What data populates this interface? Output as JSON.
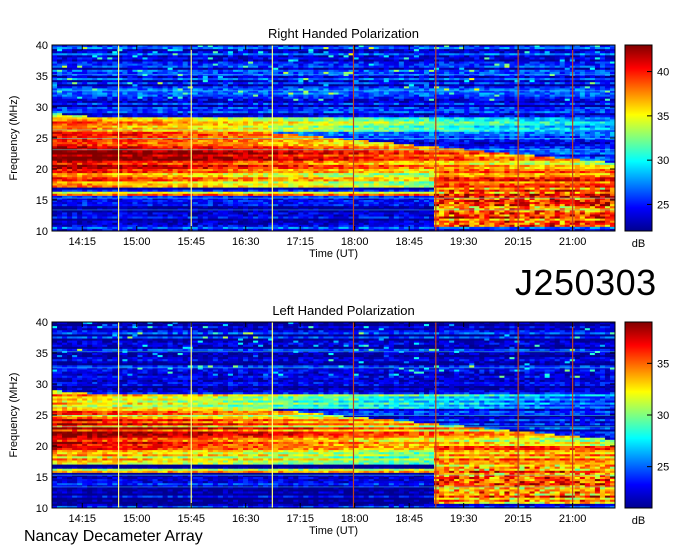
{
  "observation_code": "J250303",
  "observatory": "Nancay Decameter Array",
  "colormap": [
    "#00008f",
    "#0000ff",
    "#0080ff",
    "#00ffff",
    "#80ff80",
    "#ffff00",
    "#ff8000",
    "#ff0000",
    "#800000"
  ],
  "chart_data": [
    {
      "type": "heatmap",
      "title": "Right Handed Polarization",
      "xlabel": "Time (UT)",
      "ylabel": "Frequency (MHz)",
      "x_range": [
        "13:50",
        "21:35"
      ],
      "x_ticks": [
        "14:15",
        "15:00",
        "15:45",
        "16:30",
        "17:15",
        "18:00",
        "18:45",
        "19:30",
        "20:15",
        "21:00"
      ],
      "y_range": [
        10,
        40
      ],
      "y_ticks": [
        10,
        15,
        20,
        25,
        30,
        35,
        40
      ],
      "colorbar": {
        "label": "dB",
        "range": [
          22,
          43
        ],
        "ticks": [
          25,
          30,
          35,
          40
        ]
      },
      "time_markers": [
        "14:45",
        "15:45",
        "16:52",
        "17:59",
        "19:07",
        "20:15",
        "21:00"
      ]
    },
    {
      "type": "heatmap",
      "title": "Left Handed Polarization",
      "xlabel": "Time (UT)",
      "ylabel": "Frequency (MHz)",
      "x_range": [
        "13:50",
        "21:35"
      ],
      "x_ticks": [
        "14:15",
        "15:00",
        "15:45",
        "16:30",
        "17:15",
        "18:00",
        "18:45",
        "19:30",
        "20:15",
        "21:00"
      ],
      "y_range": [
        10,
        40
      ],
      "y_ticks": [
        10,
        15,
        20,
        25,
        30,
        35,
        40
      ],
      "colorbar": {
        "label": "dB",
        "range": [
          21,
          39
        ],
        "ticks": [
          25,
          30,
          35
        ]
      },
      "time_markers": [
        "14:45",
        "15:45",
        "16:52",
        "17:59",
        "19:07",
        "20:15",
        "21:00"
      ]
    }
  ]
}
